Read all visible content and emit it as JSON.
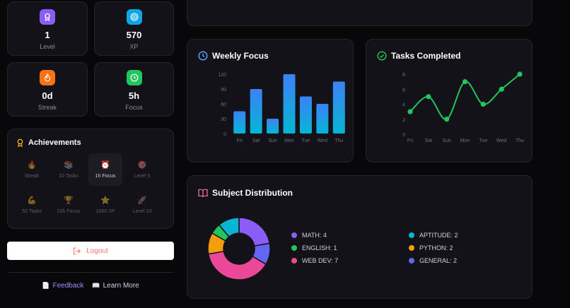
{
  "stats": [
    {
      "value": "1",
      "label": "Level",
      "icon": "medal-icon",
      "color": "#8b5cf6"
    },
    {
      "value": "570",
      "label": "XP",
      "icon": "target-icon",
      "color": "#0ea5e9"
    },
    {
      "value": "0d",
      "label": "Streak",
      "icon": "flame-icon",
      "color": "#f97316"
    },
    {
      "value": "5h",
      "label": "Focus",
      "icon": "clock-icon",
      "color": "#22c55e"
    }
  ],
  "achievements": {
    "title": "Achievements",
    "items": [
      {
        "label": "Streak",
        "icon": "🔥"
      },
      {
        "label": "10 Tasks",
        "icon": "📚"
      },
      {
        "label": "1h Focus",
        "icon": "⏰"
      },
      {
        "label": "Level 5",
        "icon": "🎯"
      },
      {
        "label": "50 Tasks",
        "icon": "💪"
      },
      {
        "label": "10h Focus",
        "icon": "🏆"
      },
      {
        "label": "1000 XP",
        "icon": "⭐"
      },
      {
        "label": "Level 10",
        "icon": "🚀"
      }
    ]
  },
  "logout_label": "Logout",
  "footer": {
    "feedback": "Feedback",
    "learn_more": "Learn More",
    "feedback_icon": "📄",
    "learn_icon": "📖"
  },
  "weekly_focus": {
    "title": "Weekly Focus"
  },
  "tasks_completed": {
    "title": "Tasks Completed"
  },
  "subject_distribution": {
    "title": "Subject Distribution"
  },
  "chart_data": [
    {
      "type": "bar",
      "title": "Weekly Focus",
      "categories": [
        "Fri",
        "Sat",
        "Sun",
        "Mon",
        "Tue",
        "Wed",
        "Thu"
      ],
      "values": [
        45,
        90,
        30,
        120,
        75,
        60,
        105
      ],
      "ylim": [
        0,
        120
      ],
      "yticks": [
        0,
        30,
        60,
        90,
        120
      ],
      "grid": false,
      "colors": [
        "#3b82f6",
        "#06b6d4"
      ]
    },
    {
      "type": "line",
      "title": "Tasks Completed",
      "categories": [
        "Fri",
        "Sat",
        "Sun",
        "Mon",
        "Tue",
        "Wed",
        "Thu"
      ],
      "values": [
        3,
        5,
        2,
        7,
        4,
        6,
        8
      ],
      "ylim": [
        0,
        8
      ],
      "yticks": [
        0,
        2,
        4,
        6,
        8
      ],
      "grid": false,
      "color": "#22c55e"
    },
    {
      "type": "pie",
      "title": "Subject Distribution",
      "slices": [
        {
          "label": "MATH",
          "value": 4,
          "color": "#8b5cf6"
        },
        {
          "label": "GENERAL",
          "value": 2,
          "color": "#6366f1"
        },
        {
          "label": "WEB DEV",
          "value": 7,
          "color": "#ec4899"
        },
        {
          "label": "PYTHON",
          "value": 2,
          "color": "#f59e0b"
        },
        {
          "label": "ENGLISH",
          "value": 1,
          "color": "#22c55e"
        },
        {
          "label": "APTITUDE",
          "value": 2,
          "color": "#06b6d4"
        }
      ],
      "legend": [
        {
          "text": "MATH: 4",
          "color": "#8b5cf6"
        },
        {
          "text": "APTITUDE: 2",
          "color": "#06b6d4"
        },
        {
          "text": "ENGLISH: 1",
          "color": "#22c55e"
        },
        {
          "text": "PYTHON: 2",
          "color": "#f59e0b"
        },
        {
          "text": "WEB DEV: 7",
          "color": "#ec4899"
        },
        {
          "text": "GENERAL: 2",
          "color": "#6366f1"
        }
      ]
    }
  ]
}
